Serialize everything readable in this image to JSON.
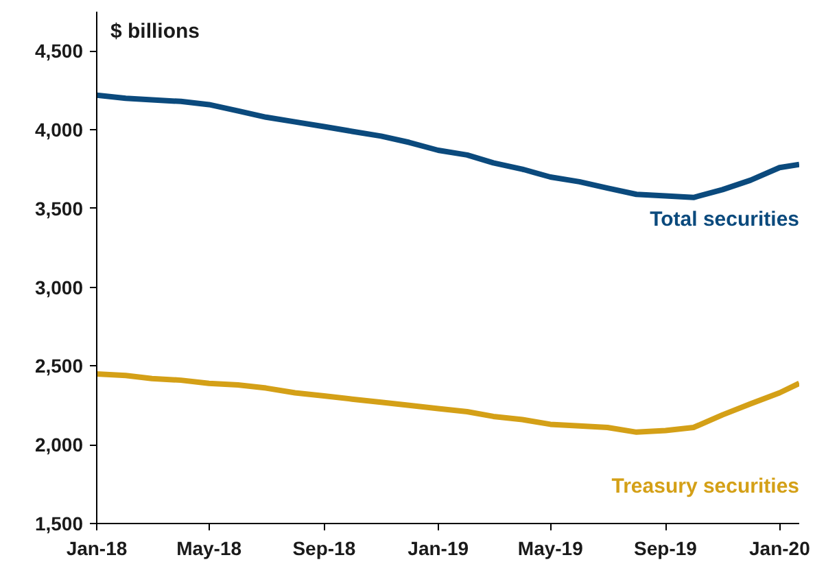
{
  "chart_data": {
    "type": "line",
    "ylabel": "$ billions",
    "xlim": [
      "2018-01-01",
      "2020-01-22"
    ],
    "ylim": [
      1500,
      4750
    ],
    "xticks": [
      {
        "value": "2018-01-01",
        "label": "Jan-18"
      },
      {
        "value": "2018-05-01",
        "label": "May-18"
      },
      {
        "value": "2018-09-01",
        "label": "Sep-18"
      },
      {
        "value": "2019-01-01",
        "label": "Jan-19"
      },
      {
        "value": "2019-05-01",
        "label": "May-19"
      },
      {
        "value": "2019-09-01",
        "label": "Sep-19"
      },
      {
        "value": "2020-01-01",
        "label": "Jan-20"
      }
    ],
    "yticks": [
      {
        "value": 1500,
        "label": "1,500"
      },
      {
        "value": 2000,
        "label": "2,000"
      },
      {
        "value": 2500,
        "label": "2,500"
      },
      {
        "value": 3000,
        "label": "3,000"
      },
      {
        "value": 3500,
        "label": "3,500"
      },
      {
        "value": 4000,
        "label": "4,000"
      },
      {
        "value": 4500,
        "label": "4,500"
      }
    ],
    "x": [
      "2018-01-01",
      "2018-02-01",
      "2018-03-01",
      "2018-04-01",
      "2018-05-01",
      "2018-06-01",
      "2018-07-01",
      "2018-08-01",
      "2018-09-01",
      "2018-10-01",
      "2018-11-01",
      "2018-12-01",
      "2019-01-01",
      "2019-02-01",
      "2019-03-01",
      "2019-04-01",
      "2019-05-01",
      "2019-06-01",
      "2019-07-01",
      "2019-08-01",
      "2019-09-01",
      "2019-10-01",
      "2019-11-01",
      "2019-12-01",
      "2020-01-01",
      "2020-01-22"
    ],
    "series": [
      {
        "name": "Total securities",
        "color": "#0b4a7d",
        "values": [
          4220,
          4200,
          4190,
          4180,
          4160,
          4120,
          4080,
          4050,
          4020,
          3990,
          3960,
          3920,
          3870,
          3840,
          3790,
          3750,
          3700,
          3670,
          3630,
          3590,
          3580,
          3570,
          3620,
          3680,
          3760,
          3780
        ]
      },
      {
        "name": "Treasury securities",
        "color": "#d4a017",
        "values": [
          2450,
          2440,
          2420,
          2410,
          2390,
          2380,
          2360,
          2330,
          2310,
          2290,
          2270,
          2250,
          2230,
          2210,
          2180,
          2160,
          2130,
          2120,
          2110,
          2080,
          2090,
          2110,
          2190,
          2260,
          2330,
          2390
        ]
      }
    ],
    "grid": false,
    "marker": "none",
    "line_style": "solid"
  }
}
